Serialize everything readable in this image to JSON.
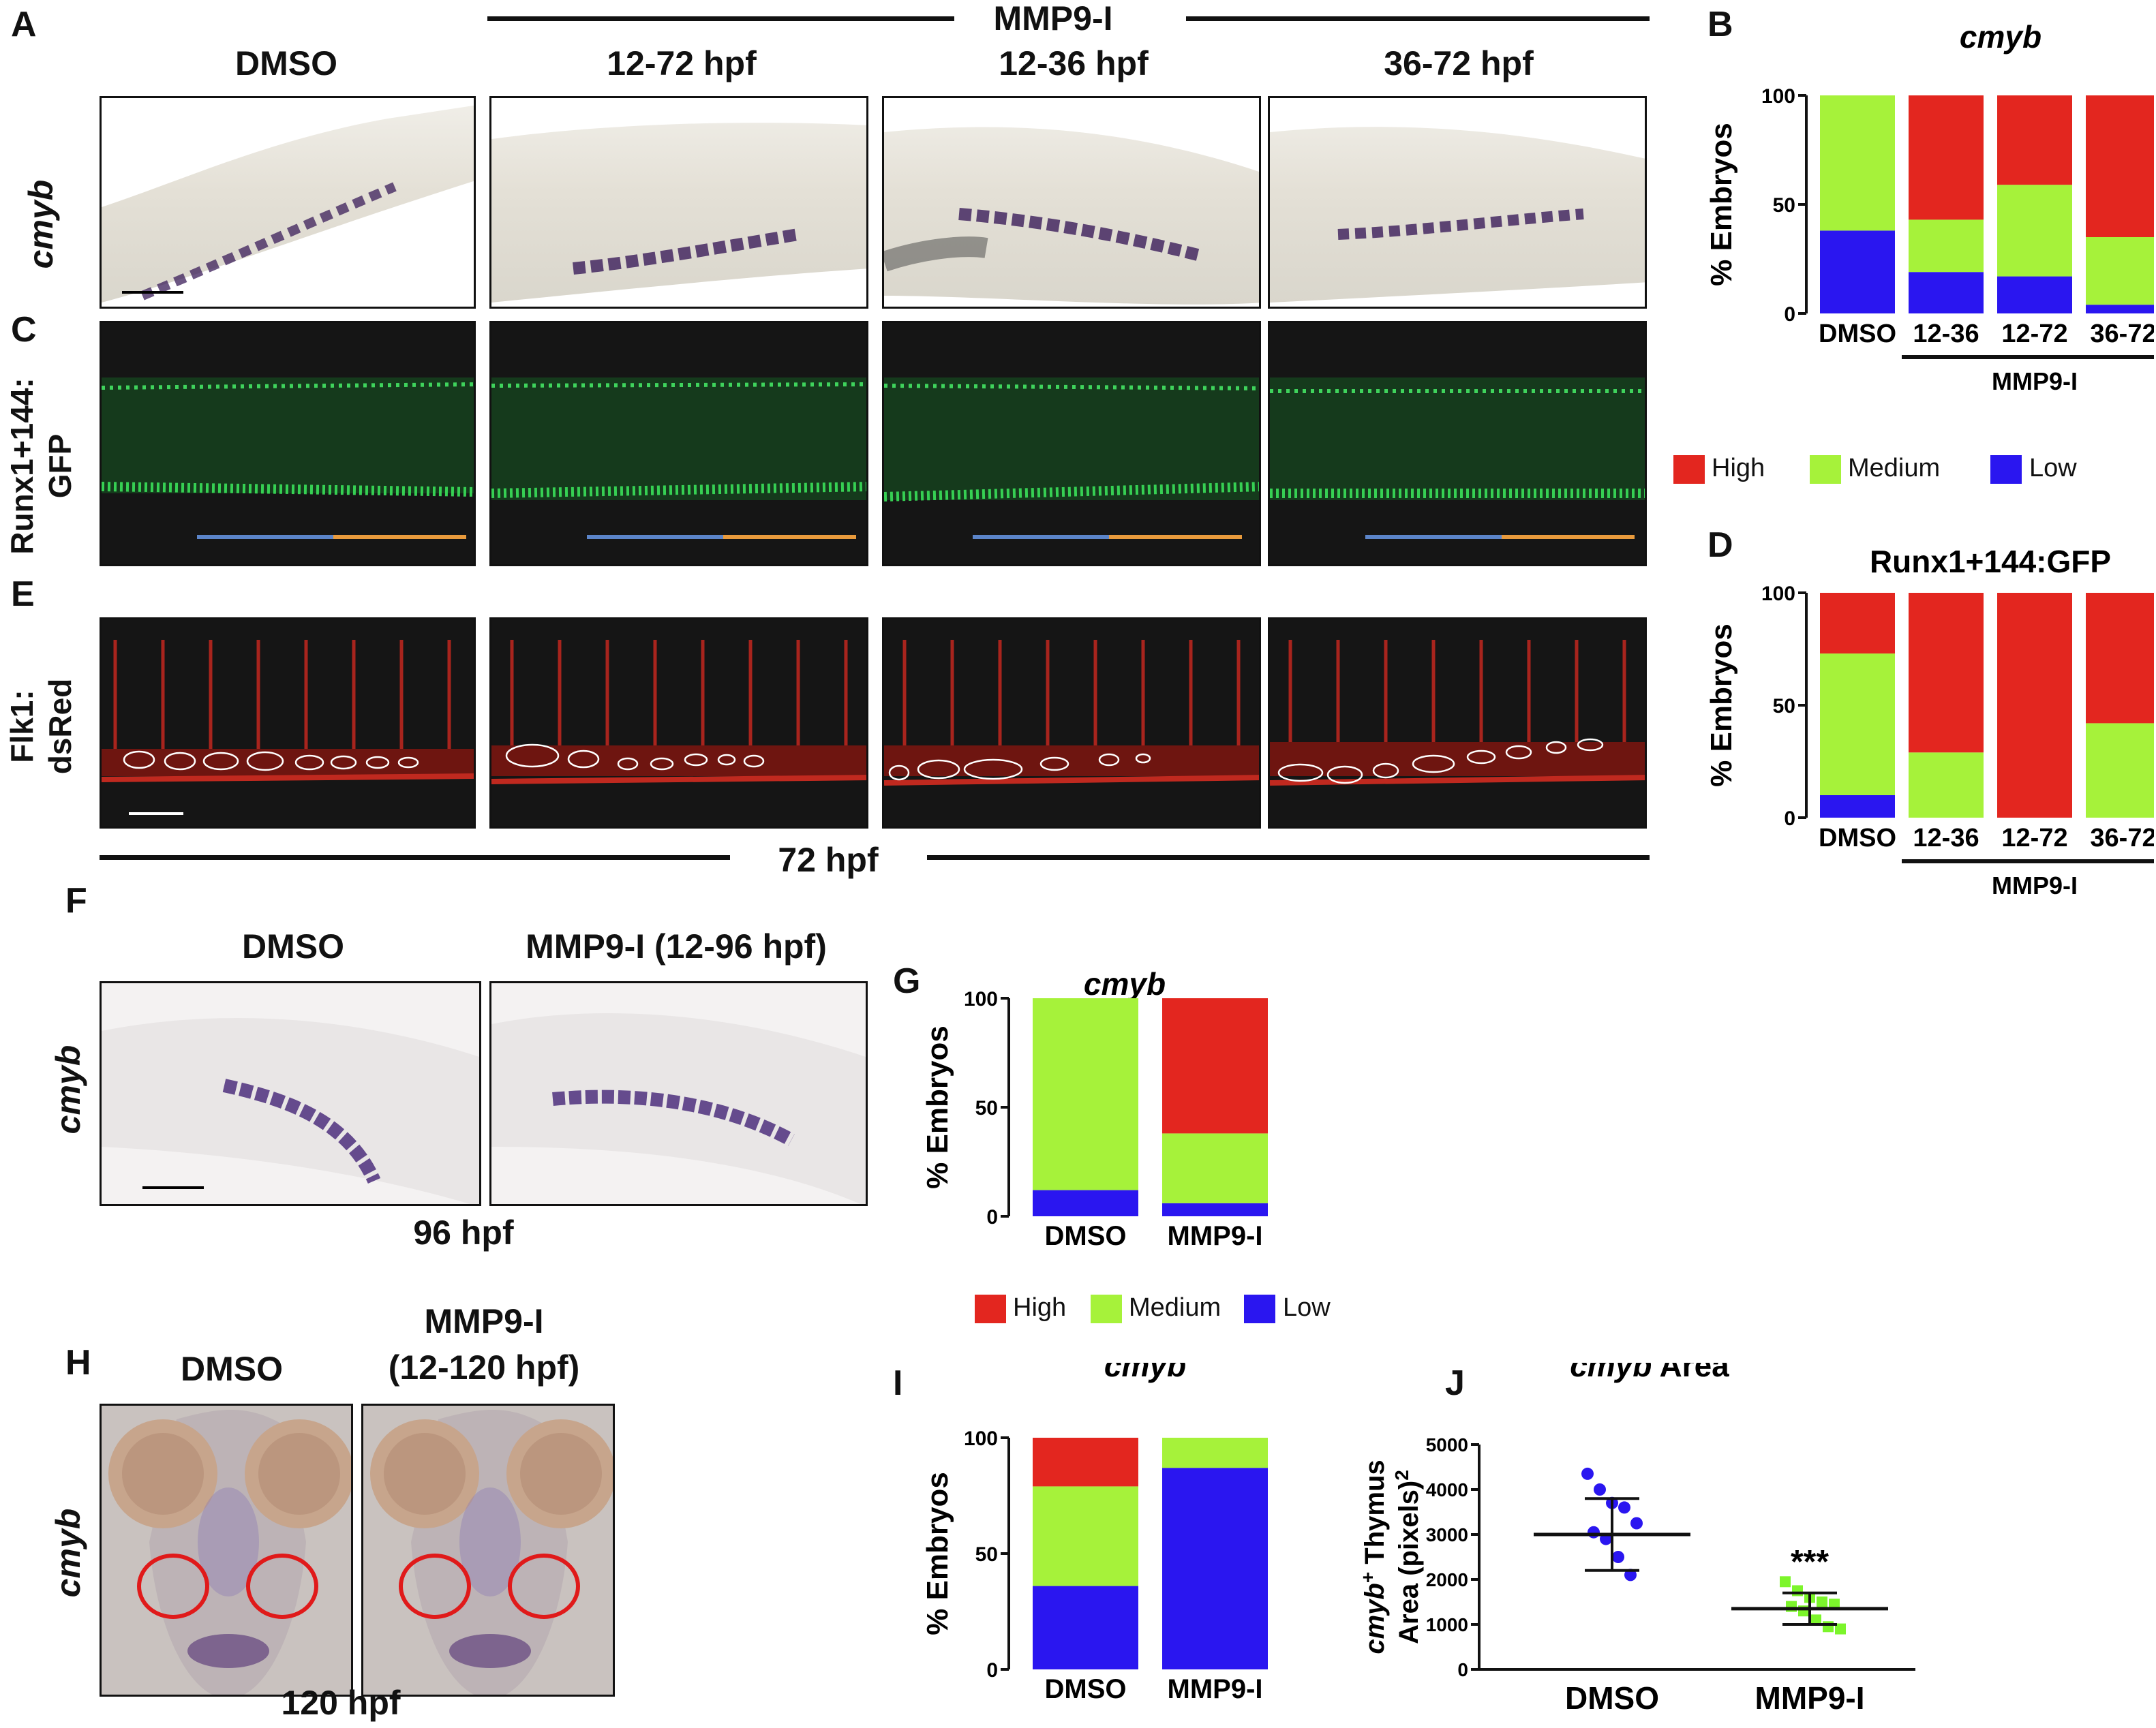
{
  "panel_letters": {
    "A": "A",
    "B": "B",
    "C": "C",
    "D": "D",
    "E": "E",
    "F": "F",
    "G": "G",
    "H": "H",
    "I": "I",
    "J": "J"
  },
  "top": {
    "mmp9_header": "MMP9-I",
    "columns": [
      "DMSO",
      "12-72 hpf",
      "12-36 hpf",
      "36-72 hpf"
    ],
    "row_labels": {
      "cmyb": "cmyb",
      "runx_line1": "Runx1+144:",
      "runx_line2": "GFP",
      "flk_line1": "Flk1:",
      "flk_line2": "dsRed"
    },
    "footer": "72 hpf"
  },
  "middle": {
    "columns": [
      "DMSO",
      "MMP9-I (12-96 hpf)"
    ],
    "row_label": "cmyb",
    "footer": "96 hpf"
  },
  "bottom": {
    "col1": "DMSO",
    "col2_line1": "MMP9-I",
    "col2_line2": "(12-120 hpf)",
    "row_label": "cmyb",
    "footer": "120 hpf"
  },
  "legend": {
    "high": "High",
    "medium": "Medium",
    "low": "Low"
  },
  "colors": {
    "high": "#e3261f",
    "medium": "#a6f23a",
    "low": "#2a16f0",
    "accent_medium_I": "#7cf52b",
    "line_blue": "#5b84c8",
    "line_orange": "#e89a3c",
    "dmso_dot": "#2a16f0",
    "mmp9_dot": "#7cf52b"
  },
  "chart_data": [
    {
      "id": "B",
      "type": "bar",
      "title": "cmyb",
      "ylabel": "% Embryos",
      "ylim": [
        0,
        100
      ],
      "yticks": [
        "0",
        "50",
        "100"
      ],
      "categories": [
        "DMSO",
        "12-36",
        "12-72",
        "36-72"
      ],
      "group_label": "MMP9-I",
      "series": [
        {
          "name": "Low",
          "values": [
            38,
            19,
            17,
            4
          ]
        },
        {
          "name": "Medium",
          "values": [
            62,
            24,
            42,
            31
          ]
        },
        {
          "name": "High",
          "values": [
            0,
            57,
            41,
            65
          ]
        }
      ]
    },
    {
      "id": "D",
      "type": "bar",
      "title": "Runx1+144:GFP",
      "ylabel": "% Embryos",
      "ylim": [
        0,
        100
      ],
      "yticks": [
        "0",
        "50",
        "100"
      ],
      "categories": [
        "DMSO",
        "12-36",
        "12-72",
        "36-72"
      ],
      "group_label": "MMP9-I",
      "series": [
        {
          "name": "Low",
          "values": [
            10,
            0,
            0,
            0
          ]
        },
        {
          "name": "Medium",
          "values": [
            63,
            29,
            0,
            42
          ]
        },
        {
          "name": "High",
          "values": [
            27,
            71,
            100,
            58
          ]
        }
      ]
    },
    {
      "id": "G",
      "type": "bar",
      "title": "cmyb",
      "ylabel": "% Embryos",
      "ylim": [
        0,
        100
      ],
      "yticks": [
        "0",
        "50",
        "100"
      ],
      "categories": [
        "DMSO",
        "MMP9-I"
      ],
      "series": [
        {
          "name": "Low",
          "values": [
            12,
            6
          ]
        },
        {
          "name": "Medium",
          "values": [
            88,
            32
          ]
        },
        {
          "name": "High",
          "values": [
            0,
            62
          ]
        }
      ]
    },
    {
      "id": "I",
      "type": "bar",
      "title": "cmyb",
      "ylabel": "% Embryos",
      "ylim": [
        0,
        100
      ],
      "yticks": [
        "0",
        "50",
        "100"
      ],
      "categories": [
        "DMSO",
        "MMP9-I"
      ],
      "series": [
        {
          "name": "Low",
          "values": [
            36,
            87
          ]
        },
        {
          "name": "Medium",
          "values": [
            43,
            13
          ]
        },
        {
          "name": "High",
          "values": [
            21,
            0
          ]
        }
      ]
    },
    {
      "id": "J",
      "type": "scatter",
      "title_italic": "cmyb",
      "title_rest": " Area",
      "ylabel_italic": "cmyb",
      "ylabel_sup": "+",
      "ylabel_rest": " Thymus",
      "ylabel_line2": "Area (pixels)",
      "ylabel_line2_sup": "2",
      "ylim": [
        0,
        5000
      ],
      "yticks": [
        "0",
        "1000",
        "2000",
        "3000",
        "4000",
        "5000"
      ],
      "categories": [
        "DMSO",
        "MMP9-I"
      ],
      "significance": "***",
      "groups": [
        {
          "name": "DMSO",
          "mean": 3000,
          "sd_low": 2200,
          "sd_high": 3800,
          "points": [
            4350,
            4000,
            3700,
            3600,
            3250,
            3050,
            2900,
            2500,
            2100
          ]
        },
        {
          "name": "MMP9-I",
          "mean": 1350,
          "sd_low": 1000,
          "sd_high": 1700,
          "points": [
            1950,
            1750,
            1600,
            1500,
            1450,
            1400,
            1300,
            1100,
            950,
            900
          ]
        }
      ]
    }
  ]
}
